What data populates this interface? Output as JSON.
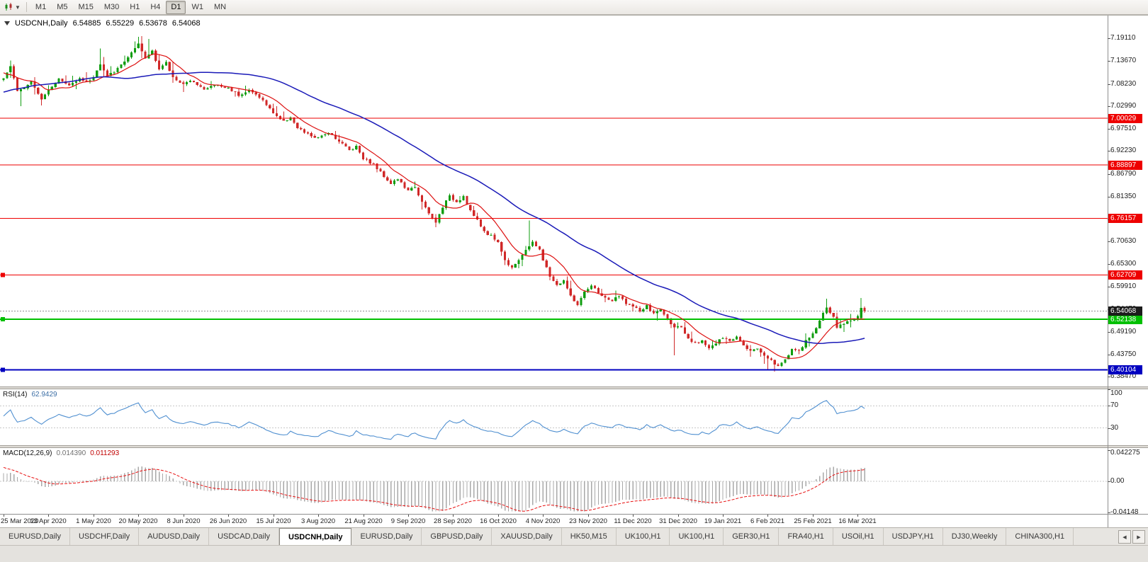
{
  "toolbar": {
    "timeframes": [
      "M1",
      "M5",
      "M15",
      "M30",
      "H1",
      "H4",
      "D1",
      "W1",
      "MN"
    ],
    "active_timeframe": "D1"
  },
  "chart": {
    "symbol": "USDCNH",
    "period": "Daily",
    "title": "USDCNH,Daily",
    "ohlc": {
      "open": "6.54885",
      "high": "6.55229",
      "low": "6.53678",
      "close": "6.54068"
    },
    "current_price_label": "6.54068",
    "price_axis": [
      "7.19110",
      "7.13670",
      "7.08230",
      "7.02990",
      "6.97510",
      "6.92230",
      "6.86790",
      "6.81350",
      "6.75910",
      "6.70630",
      "6.65300",
      "6.59910",
      "6.54470",
      "6.49190",
      "6.43750",
      "6.38470"
    ],
    "hlines": [
      {
        "price": 7.00029,
        "label": "7.00029",
        "color": "#ee0000",
        "width": 1,
        "handle": false
      },
      {
        "price": 6.88897,
        "label": "6.88897",
        "color": "#ee0000",
        "width": 1,
        "handle": false
      },
      {
        "price": 6.76157,
        "label": "6.76157",
        "color": "#ee0000",
        "width": 1,
        "handle": false
      },
      {
        "price": 6.62709,
        "label": "6.62709",
        "color": "#ee0000",
        "width": 1,
        "handle": true
      },
      {
        "price": 6.52138,
        "label": "6.52138",
        "color": "#00c000",
        "width": 2,
        "handle": true
      },
      {
        "price": 6.40104,
        "label": "6.40104",
        "color": "#0000c0",
        "width": 2,
        "handle": true
      }
    ]
  },
  "rsi": {
    "name": "RSI(14)",
    "value": "62.9429",
    "period": 14,
    "levels": [
      70,
      30
    ],
    "axis_labels": [
      "100",
      "70",
      "30"
    ],
    "axis_values": [
      100,
      70,
      30
    ],
    "line_color": "#4f8fd0"
  },
  "macd": {
    "name": "MACD(12,26,9)",
    "main_value": "0.014390",
    "signal_value": "0.011293",
    "axis_labels": [
      "0.042275",
      "0.00",
      "-0.04148"
    ],
    "axis_values": [
      0.042275,
      0,
      -0.04148
    ],
    "histogram_color": "#a8a8a8",
    "signal_color": "#e81010"
  },
  "date_axis": {
    "bar_step": 13,
    "labels": [
      "25 Mar 2020",
      "13 Apr 2020",
      "1 May 2020",
      "20 May 2020",
      "8 Jun 2020",
      "26 Jun 2020",
      "15 Jul 2020",
      "3 Aug 2020",
      "21 Aug 2020",
      "9 Sep 2020",
      "28 Sep 2020",
      "16 Oct 2020",
      "4 Nov 2020",
      "23 Nov 2020",
      "11 Dec 2020",
      "31 Dec 2020",
      "19 Jan 2021",
      "6 Feb 2021",
      "25 Feb 2021",
      "16 Mar 2021"
    ]
  },
  "tab_bar": {
    "tabs": [
      "EURUSD,Daily",
      "USDCHF,Daily",
      "AUDUSD,Daily",
      "USDCAD,Daily",
      "USDCNH,Daily",
      "EURUSD,Daily",
      "GBPUSD,Daily",
      "XAUUSD,Daily",
      "HK50,M15",
      "UK100,H1",
      "UK100,H1",
      "GER30,H1",
      "FRA40,H1",
      "USOil,H1",
      "USDJPY,H1",
      "DJ30,Weekly",
      "CHINA300,H1"
    ],
    "active_index": 4,
    "scroll_left_icon": "◀",
    "scroll_right_icon": "▶"
  },
  "chart_data": {
    "type": "candlestick",
    "symbol": "USDCNH",
    "timeframe": "D1",
    "title": "USDCNH,Daily",
    "visible_bars": 250,
    "prehistory_bars": 45,
    "ylim": [
      6.359,
      7.228
    ],
    "up_color": "#0f9d0f",
    "down_color": "#d02828",
    "ma_fast": {
      "type": "sma",
      "period": 10,
      "color": "#dd1111"
    },
    "ma_slow": {
      "type": "sma",
      "period": 45,
      "color": "#1a1ab8"
    },
    "prehistory_anchors": [
      [
        0,
        7.02
      ],
      [
        8,
        6.998
      ],
      [
        16,
        7.048
      ],
      [
        24,
        7.02
      ],
      [
        30,
        7.118
      ],
      [
        34,
        7.168
      ],
      [
        40,
        7.102
      ],
      [
        44,
        7.092
      ]
    ],
    "price_path_anchors": [
      [
        0,
        7.095
      ],
      [
        2,
        7.125
      ],
      [
        4,
        7.062
      ],
      [
        6,
        7.075
      ],
      [
        8,
        7.09
      ],
      [
        11,
        7.047
      ],
      [
        13,
        7.07
      ],
      [
        16,
        7.093
      ],
      [
        19,
        7.078
      ],
      [
        22,
        7.098
      ],
      [
        24,
        7.085
      ],
      [
        26,
        7.1
      ],
      [
        28,
        7.128
      ],
      [
        30,
        7.1
      ],
      [
        33,
        7.118
      ],
      [
        36,
        7.146
      ],
      [
        39,
        7.175
      ],
      [
        41,
        7.142
      ],
      [
        43,
        7.163
      ],
      [
        45,
        7.118
      ],
      [
        47,
        7.132
      ],
      [
        49,
        7.098
      ],
      [
        52,
        7.082
      ],
      [
        55,
        7.09
      ],
      [
        58,
        7.068
      ],
      [
        61,
        7.08
      ],
      [
        65,
        7.072
      ],
      [
        68,
        7.057
      ],
      [
        71,
        7.066
      ],
      [
        74,
        7.052
      ],
      [
        77,
        7.022
      ],
      [
        79,
        7.006
      ],
      [
        81,
        6.992
      ],
      [
        83,
        7.004
      ],
      [
        85,
        6.976
      ],
      [
        88,
        6.962
      ],
      [
        91,
        6.952
      ],
      [
        94,
        6.968
      ],
      [
        97,
        6.946
      ],
      [
        100,
        6.925
      ],
      [
        102,
        6.934
      ],
      [
        104,
        6.906
      ],
      [
        107,
        6.89
      ],
      [
        110,
        6.863
      ],
      [
        112,
        6.846
      ],
      [
        114,
        6.856
      ],
      [
        117,
        6.826
      ],
      [
        119,
        6.838
      ],
      [
        121,
        6.8
      ],
      [
        123,
        6.772
      ],
      [
        125,
        6.752
      ],
      [
        127,
        6.79
      ],
      [
        129,
        6.814
      ],
      [
        131,
        6.802
      ],
      [
        133,
        6.815
      ],
      [
        135,
        6.78
      ],
      [
        137,
        6.756
      ],
      [
        139,
        6.731
      ],
      [
        141,
        6.72
      ],
      [
        143,
        6.706
      ],
      [
        145,
        6.661
      ],
      [
        147,
        6.646
      ],
      [
        149,
        6.664
      ],
      [
        151,
        6.684
      ],
      [
        153,
        6.708
      ],
      [
        155,
        6.685
      ],
      [
        156,
        6.662
      ],
      [
        158,
        6.625
      ],
      [
        160,
        6.602
      ],
      [
        162,
        6.614
      ],
      [
        164,
        6.576
      ],
      [
        166,
        6.556
      ],
      [
        168,
        6.584
      ],
      [
        170,
        6.6
      ],
      [
        172,
        6.586
      ],
      [
        174,
        6.571
      ],
      [
        176,
        6.566
      ],
      [
        178,
        6.576
      ],
      [
        180,
        6.561
      ],
      [
        182,
        6.551
      ],
      [
        184,
        6.541
      ],
      [
        186,
        6.552
      ],
      [
        188,
        6.534
      ],
      [
        190,
        6.545
      ],
      [
        192,
        6.521
      ],
      [
        194,
        6.505
      ],
      [
        196,
        6.499
      ],
      [
        198,
        6.473
      ],
      [
        200,
        6.463
      ],
      [
        202,
        6.472
      ],
      [
        204,
        6.453
      ],
      [
        206,
        6.464
      ],
      [
        208,
        6.477
      ],
      [
        210,
        6.469
      ],
      [
        212,
        6.481
      ],
      [
        214,
        6.462
      ],
      [
        216,
        6.446
      ],
      [
        218,
        6.452
      ],
      [
        220,
        6.436
      ],
      [
        222,
        6.424
      ],
      [
        224,
        6.408
      ],
      [
        226,
        6.426
      ],
      [
        228,
        6.451
      ],
      [
        230,
        6.444
      ],
      [
        232,
        6.468
      ],
      [
        234,
        6.488
      ],
      [
        236,
        6.518
      ],
      [
        238,
        6.55
      ],
      [
        240,
        6.527
      ],
      [
        241,
        6.501
      ],
      [
        243,
        6.512
      ],
      [
        245,
        6.519
      ],
      [
        247,
        6.529
      ],
      [
        248,
        6.5488
      ],
      [
        249,
        6.54068
      ]
    ],
    "special_candles": [
      {
        "i": 5,
        "low": 7.029
      },
      {
        "i": 11,
        "low": 7.031
      },
      {
        "i": 28,
        "high": 7.167
      },
      {
        "i": 40,
        "high": 7.196
      },
      {
        "i": 42,
        "high": 7.189
      },
      {
        "i": 125,
        "low": 6.7405
      },
      {
        "i": 152,
        "high": 6.757
      },
      {
        "i": 194,
        "low": 6.436
      },
      {
        "i": 221,
        "low": 6.401
      },
      {
        "i": 223,
        "low": 6.3965
      },
      {
        "i": 238,
        "high": 6.5705
      },
      {
        "i": 248,
        "open": 6.5245,
        "high": 6.5725,
        "low": 6.5225,
        "close": 6.5488
      },
      {
        "i": 249,
        "open": 6.54885,
        "high": 6.55229,
        "low": 6.53678,
        "close": 6.54068
      }
    ]
  }
}
